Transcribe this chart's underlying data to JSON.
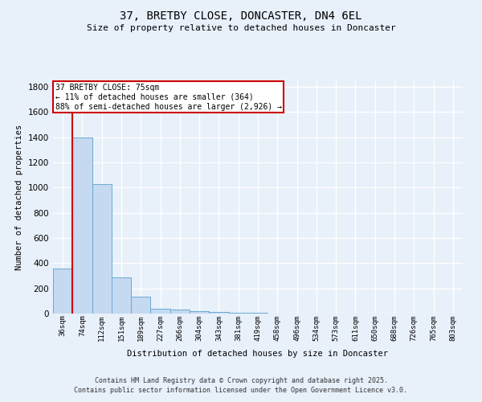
{
  "title": "37, BRETBY CLOSE, DONCASTER, DN4 6EL",
  "subtitle": "Size of property relative to detached houses in Doncaster",
  "xlabel": "Distribution of detached houses by size in Doncaster",
  "ylabel": "Number of detached properties",
  "bar_labels": [
    "36sqm",
    "74sqm",
    "112sqm",
    "151sqm",
    "189sqm",
    "227sqm",
    "266sqm",
    "304sqm",
    "343sqm",
    "381sqm",
    "419sqm",
    "458sqm",
    "496sqm",
    "534sqm",
    "573sqm",
    "611sqm",
    "650sqm",
    "688sqm",
    "726sqm",
    "765sqm",
    "803sqm"
  ],
  "bar_values": [
    360,
    1400,
    1030,
    290,
    135,
    40,
    35,
    20,
    12,
    5,
    4,
    3,
    3,
    2,
    2,
    1,
    1,
    1,
    1,
    0,
    0
  ],
  "bar_color": "#c5d9f0",
  "bar_edge_color": "#6aaad4",
  "bg_color": "#e8f0fa",
  "grid_color": "#ffffff",
  "vline_color": "#cc0000",
  "annotation_text": "37 BRETBY CLOSE: 75sqm\n← 11% of detached houses are smaller (364)\n88% of semi-detached houses are larger (2,926) →",
  "annotation_box_color": "#ffffff",
  "annotation_box_edge": "#cc0000",
  "ylim": [
    0,
    1850
  ],
  "yticks": [
    0,
    200,
    400,
    600,
    800,
    1000,
    1200,
    1400,
    1600,
    1800
  ],
  "footer_line1": "Contains HM Land Registry data © Crown copyright and database right 2025.",
  "footer_line2": "Contains public sector information licensed under the Open Government Licence v3.0."
}
